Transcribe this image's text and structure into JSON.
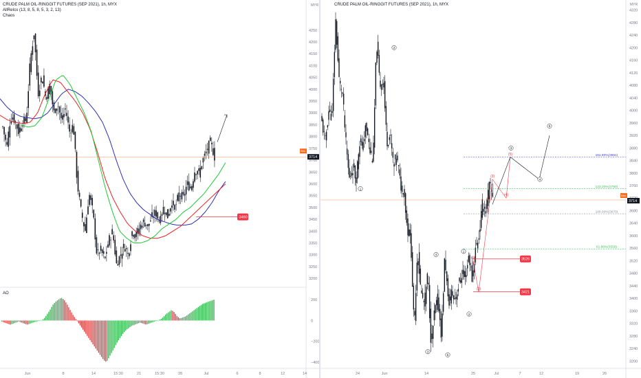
{
  "colors": {
    "up": "#26a69a",
    "down": "#ef5350",
    "jaw": "#2c2cb6",
    "teeth": "#ef2020",
    "lips": "#1eca36",
    "ao_up": "#2fb14a",
    "ao_down": "#e23a3a",
    "last_price": "#ff6a1a",
    "label_red": "#f23645",
    "fib_blue": "#3c3ce0",
    "fib_green": "#3ac45a",
    "fib_gray": "#8a8f99",
    "wave": "#f23645"
  },
  "left_chart": {
    "title": "CRUDE PALM OIL-RINGGIT FUTURES (SEP 2021), 1h, MYX",
    "indicator1": "AllReIco (13, 8, 5, 8, 5, 3, 2, 13)",
    "indicator2": "Chaos",
    "currency": "MYR",
    "last_price_label": "3714",
    "last_price_tag": "Bbo",
    "marker_label": "3460",
    "y_ticks": [
      "4250",
      "4200",
      "4150",
      "4100",
      "4050",
      "4000",
      "3950",
      "3900",
      "3850",
      "3800",
      "3750",
      "3700",
      "3650",
      "3600",
      "3550",
      "3500",
      "3450",
      "3400",
      "3350",
      "3300",
      "3250",
      "3200"
    ],
    "x_ticks": [
      "Jun",
      "8",
      "14",
      "15:30",
      "21",
      "15:30",
      "28",
      "Jul",
      "6",
      "8",
      "12",
      "14"
    ],
    "ao_label": "AO",
    "ao_ticks": [
      "200",
      "0",
      "−200",
      "−400"
    ]
  },
  "right_chart": {
    "title": "CRUDE PALM OIL-RINGGIT FUTURES (SEP 2021), 1h, MYX",
    "currency": "MYR",
    "last_price_label": "3714",
    "last_price_tag": "Bbo",
    "y_ticks": [
      "4320",
      "4280",
      "4240",
      "4200",
      "4160",
      "4120",
      "4080",
      "4040",
      "4000",
      "3960",
      "3920",
      "3880",
      "3840",
      "3800",
      "3760",
      "3720",
      "3680",
      "3640",
      "3600",
      "3560",
      "3520",
      "3480",
      "3440",
      "3400",
      "3360",
      "3320",
      "3280",
      "3240",
      "3200"
    ],
    "x_ticks": [
      "24",
      "Jun",
      "14",
      "25",
      "Jul",
      "7",
      "12",
      "19",
      "26"
    ],
    "fib_labels": [
      "161.80%(3851)",
      "123.20%(3750)",
      "100.00%(3670)",
      "61.80%(3558)"
    ],
    "price_labels": [
      "3526",
      "3421"
    ],
    "wave_labels": [
      "1",
      "2",
      "3",
      "4",
      "5",
      "(1)",
      "(2)",
      "(3)",
      "(4)",
      "(5)",
      "1",
      "2",
      "3",
      "4",
      "5"
    ]
  },
  "chart_data": [
    {
      "type": "candlestick",
      "title": "CRUDE PALM OIL-RINGGIT FUTURES (SEP 2021), 1h, MYX",
      "ylim": [
        3180,
        4290
      ],
      "ylabel": "MYR",
      "last_price": 3714,
      "marked_level": 3460,
      "path": [
        3840,
        3760,
        3880,
        3870,
        3820,
        3860,
        3870,
        4120,
        4240,
        3980,
        4060,
        3960,
        4020,
        3900,
        3940,
        3860,
        3920,
        3820,
        3850,
        3600,
        3480,
        3400,
        3560,
        3480,
        3300,
        3320,
        3280,
        3360,
        3400,
        3260,
        3300,
        3340,
        3300,
        3400,
        3380,
        3420,
        3440,
        3420,
        3460,
        3480,
        3440,
        3500,
        3460,
        3520,
        3500,
        3560,
        3540,
        3600,
        3580,
        3660,
        3640,
        3700,
        3740,
        3780,
        3714
      ],
      "alligator": {
        "jaw": [
          3960,
          3925,
          3900,
          3885,
          3880,
          3875,
          3880,
          3900,
          3940,
          3980,
          4000,
          3990,
          3970,
          3940,
          3905,
          3860,
          3790,
          3700,
          3620,
          3560,
          3520,
          3490,
          3470,
          3450,
          3440,
          3430,
          3425,
          3425,
          3430,
          3450,
          3480,
          3520,
          3570,
          3610
        ],
        "teeth": [
          3890,
          3870,
          3860,
          3855,
          3860,
          3900,
          3980,
          4040,
          4030,
          3990,
          3950,
          3900,
          3830,
          3730,
          3620,
          3540,
          3480,
          3430,
          3400,
          3380,
          3370,
          3370,
          3380,
          3400,
          3420,
          3450,
          3480,
          3510,
          3540,
          3570,
          3600
        ],
        "lips": [
          3850,
          3840,
          3845,
          3880,
          3960,
          4040,
          4060,
          4020,
          3960,
          3900,
          3820,
          3700,
          3580,
          3480,
          3400,
          3370,
          3350,
          3350,
          3360,
          3380,
          3410,
          3430,
          3450,
          3480,
          3500,
          3530,
          3560,
          3600,
          3640,
          3690
        ]
      },
      "forecast_arrow": [
        3800,
        3880
      ]
    },
    {
      "type": "bar",
      "title": "AO",
      "ylim": [
        -420,
        240
      ],
      "values": [
        -10,
        -20,
        -30,
        -40,
        -30,
        -20,
        -10,
        -20,
        -30,
        -40,
        -30,
        -20,
        -10,
        -5,
        0,
        20,
        60,
        100,
        150,
        180,
        200,
        220,
        200,
        160,
        110,
        60,
        20,
        -20,
        -60,
        -100,
        -140,
        -180,
        -220,
        -260,
        -300,
        -340,
        -380,
        -400,
        -350,
        -300,
        -250,
        -200,
        -160,
        -120,
        -90,
        -70,
        -50,
        -40,
        -30,
        -20,
        -30,
        -40,
        -30,
        -20,
        -10,
        0,
        10,
        30,
        60,
        80,
        100,
        80,
        40,
        20,
        30,
        40,
        60,
        80,
        100,
        120,
        140,
        160,
        170,
        180,
        190,
        200
      ]
    },
    {
      "type": "candlestick",
      "title": "CRUDE PALM OIL-RINGGIT FUTURES (SEP 2021), 1h, MYX",
      "ylim": [
        3190,
        4330
      ],
      "ylabel": "MYR",
      "last_price": 3714,
      "path": [
        3960,
        3900,
        4000,
        3980,
        4290,
        4100,
        4060,
        3900,
        3780,
        3820,
        3780,
        3900,
        3880,
        3960,
        3870,
        3840,
        4220,
        4080,
        4100,
        3900,
        3920,
        3820,
        3860,
        3760,
        3750,
        3620,
        3600,
        3300,
        3560,
        3420,
        3380,
        3480,
        3250,
        3360,
        3400,
        3280,
        3540,
        3380,
        3420,
        3400,
        3440,
        3480,
        3460,
        3540,
        3460,
        3560,
        3600,
        3700,
        3680,
        3760,
        3730
      ],
      "fib_levels": [
        {
          "label": "161.80%(3851)",
          "value": 3851
        },
        {
          "label": "123.20%(3750)",
          "value": 3750
        },
        {
          "label": "100.00%(3670)",
          "value": 3670
        },
        {
          "label": "61.80%(3558)",
          "value": 3558
        }
      ],
      "levels": [
        3526,
        3421
      ],
      "wave_points_primary": [
        {
          "label": "1",
          "value": 3750
        },
        {
          "label": "2",
          "value": 4200
        },
        {
          "label": "3",
          "value": 3230
        },
        {
          "label": "4",
          "value": 3540
        },
        {
          "label": "5",
          "value": 3220
        },
        {
          "label": "1",
          "value": 3550
        },
        {
          "label": "2",
          "value": 3350
        },
        {
          "label": "3",
          "value": 3880
        },
        {
          "label": "4",
          "value": 3780
        },
        {
          "label": "5",
          "value": 3950
        }
      ],
      "wave_points_minor": [
        {
          "label": "(1)",
          "value": 3520
        },
        {
          "label": "(2)",
          "value": 3420
        },
        {
          "label": "(3)",
          "value": 3780
        },
        {
          "label": "(4)",
          "value": 3720
        },
        {
          "label": "(5)",
          "value": 3850
        }
      ]
    }
  ]
}
